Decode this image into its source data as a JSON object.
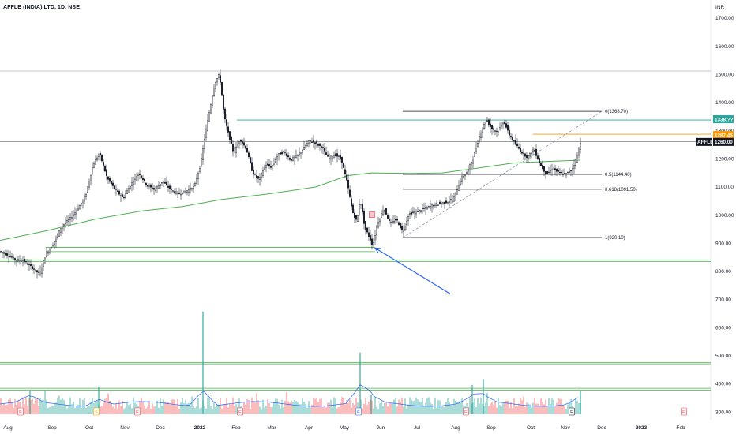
{
  "header": {
    "title": "AFFLE (INDIA) LTD, 1D, NSE",
    "currency": "INR"
  },
  "chart_data": {
    "type": "candlestick",
    "symbol": "AFFLE",
    "price_axis": {
      "ticks": [
        "1700.00",
        "1600.00",
        "1500.00",
        "1400.00",
        "1300.00",
        "1200.00",
        "1100.00",
        "1000.00",
        "900.00",
        "800.00",
        "700.00",
        "600.00",
        "500.00",
        "400.00",
        "300.00"
      ],
      "ylim": [
        290,
        1735
      ]
    },
    "time_axis": {
      "labels": [
        "Aug",
        "Sep",
        "Oct",
        "Nov",
        "Dec",
        "2022",
        "Feb",
        "Mar",
        "Apr",
        "May",
        "Jun",
        "Jul",
        "Aug",
        "Sep",
        "Oct",
        "Nov",
        "Dec",
        "2023",
        "Feb"
      ]
    },
    "price_tags": [
      {
        "label": "1338.??",
        "value": 1338,
        "color": "#26a69a"
      },
      {
        "label": "1287.45",
        "value": 1287.45,
        "color": "#ff9800"
      },
      {
        "label": "AFFLE",
        "value": 1260,
        "color": "#131722"
      },
      {
        "label": "1260.00",
        "value": 1260,
        "color": "#131722"
      }
    ],
    "fib_levels": [
      {
        "label": "0(1368.70)",
        "value": 1368.7
      },
      {
        "label": "0.5(1144.40)",
        "value": 1144.4
      },
      {
        "label": "0.618(1091.50)",
        "value": 1091.5
      },
      {
        "label": "1(920.10)",
        "value": 920.1
      }
    ],
    "horizontal_lines": [
      {
        "value": 1512,
        "color": "#b2b5be"
      },
      {
        "value": 1261,
        "color": "#787b86"
      },
      {
        "value": 1338,
        "color": "#26a69a"
      },
      {
        "value": 1287.45,
        "color": "#ff9800"
      },
      {
        "value": 885,
        "color": "#4caf50"
      },
      {
        "value": 870,
        "color": "#4caf50"
      },
      {
        "value": 840,
        "color": "#4caf50"
      },
      {
        "value": 835,
        "color": "#4caf50"
      },
      {
        "value": 476,
        "color": "#4caf50"
      },
      {
        "value": 471,
        "color": "#4caf50"
      },
      {
        "value": 384,
        "color": "#4caf50"
      },
      {
        "value": 378,
        "color": "#4caf50"
      }
    ],
    "close_series": [
      [
        0,
        870
      ],
      [
        10,
        858
      ],
      [
        20,
        840
      ],
      [
        30,
        838
      ],
      [
        40,
        815
      ],
      [
        50,
        790
      ],
      [
        58,
        860
      ],
      [
        68,
        900
      ],
      [
        78,
        960
      ],
      [
        88,
        985
      ],
      [
        98,
        1020
      ],
      [
        108,
        1065
      ],
      [
        118,
        1180
      ],
      [
        126,
        1220
      ],
      [
        136,
        1130
      ],
      [
        146,
        1090
      ],
      [
        156,
        1060
      ],
      [
        166,
        1110
      ],
      [
        176,
        1150
      ],
      [
        186,
        1105
      ],
      [
        196,
        1090
      ],
      [
        206,
        1120
      ],
      [
        216,
        1090
      ],
      [
        226,
        1075
      ],
      [
        236,
        1085
      ],
      [
        246,
        1100
      ],
      [
        254,
        1180
      ],
      [
        260,
        1290
      ],
      [
        266,
        1380
      ],
      [
        272,
        1470
      ],
      [
        278,
        1500
      ],
      [
        284,
        1350
      ],
      [
        290,
        1280
      ],
      [
        296,
        1220
      ],
      [
        304,
        1270
      ],
      [
        312,
        1235
      ],
      [
        320,
        1150
      ],
      [
        328,
        1125
      ],
      [
        336,
        1180
      ],
      [
        344,
        1170
      ],
      [
        352,
        1215
      ],
      [
        360,
        1225
      ],
      [
        368,
        1195
      ],
      [
        376,
        1210
      ],
      [
        384,
        1235
      ],
      [
        392,
        1265
      ],
      [
        400,
        1255
      ],
      [
        408,
        1240
      ],
      [
        416,
        1200
      ],
      [
        424,
        1215
      ],
      [
        432,
        1200
      ],
      [
        440,
        1110
      ],
      [
        446,
        1015
      ],
      [
        452,
        975
      ],
      [
        456,
        1060
      ],
      [
        462,
        955
      ],
      [
        468,
        920
      ],
      [
        472,
        890
      ],
      [
        478,
        970
      ],
      [
        486,
        1025
      ],
      [
        494,
        970
      ],
      [
        502,
        985
      ],
      [
        510,
        940
      ],
      [
        518,
        1005
      ],
      [
        526,
        1010
      ],
      [
        534,
        1020
      ],
      [
        544,
        1030
      ],
      [
        554,
        1040
      ],
      [
        564,
        1045
      ],
      [
        574,
        1055
      ],
      [
        584,
        1130
      ],
      [
        592,
        1155
      ],
      [
        600,
        1210
      ],
      [
        608,
        1290
      ],
      [
        616,
        1340
      ],
      [
        622,
        1310
      ],
      [
        630,
        1295
      ],
      [
        638,
        1335
      ],
      [
        644,
        1290
      ],
      [
        652,
        1255
      ],
      [
        660,
        1225
      ],
      [
        668,
        1205
      ],
      [
        676,
        1235
      ],
      [
        684,
        1180
      ],
      [
        692,
        1145
      ],
      [
        700,
        1165
      ],
      [
        708,
        1150
      ],
      [
        716,
        1145
      ],
      [
        724,
        1160
      ],
      [
        730,
        1200
      ],
      [
        735,
        1260
      ]
    ],
    "sma_series": [
      [
        0,
        910
      ],
      [
        60,
        945
      ],
      [
        120,
        985
      ],
      [
        180,
        1015
      ],
      [
        230,
        1030
      ],
      [
        280,
        1055
      ],
      [
        340,
        1075
      ],
      [
        400,
        1100
      ],
      [
        440,
        1140
      ],
      [
        470,
        1150
      ],
      [
        520,
        1148
      ],
      [
        560,
        1150
      ],
      [
        600,
        1165
      ],
      [
        650,
        1185
      ],
      [
        690,
        1190
      ],
      [
        735,
        1195
      ]
    ],
    "volume_spikes": [
      {
        "x": 257,
        "value": 650
      },
      {
        "x": 456,
        "value": 510
      },
      {
        "x": 125,
        "value": 395
      },
      {
        "x": 598,
        "value": 400
      },
      {
        "x": 612,
        "value": 420
      },
      {
        "x": 38,
        "value": 380
      },
      {
        "x": 735,
        "value": 380
      },
      {
        "x": 470,
        "value": 365
      }
    ],
    "event_markers": [
      {
        "x": 26,
        "label": "E",
        "color": "#f23645"
      },
      {
        "x": 122,
        "label": "S",
        "color": "#ff9800"
      },
      {
        "x": 174,
        "label": "E",
        "color": "#f23645"
      },
      {
        "x": 304,
        "label": "E",
        "color": "#f23645"
      },
      {
        "x": 454,
        "label": "E",
        "color": "#2962ff"
      },
      {
        "x": 590,
        "label": "E",
        "color": "#f23645"
      },
      {
        "x": 724,
        "label": "E",
        "color": "#131722"
      },
      {
        "x": 866,
        "label": "E",
        "color": "#f23645"
      }
    ],
    "annotations": {
      "arrow": {
        "from_x": 570,
        "from_value": 720,
        "to_x": 475,
        "to_value": 883,
        "color": "#2962ff"
      },
      "trendline": {
        "from_x": 510,
        "from_value": 920,
        "to_x": 762,
        "to_value": 1368.7,
        "color": "#9598a1"
      },
      "box": {
        "x": 471,
        "value": 1000,
        "color": "#f23645"
      }
    }
  }
}
